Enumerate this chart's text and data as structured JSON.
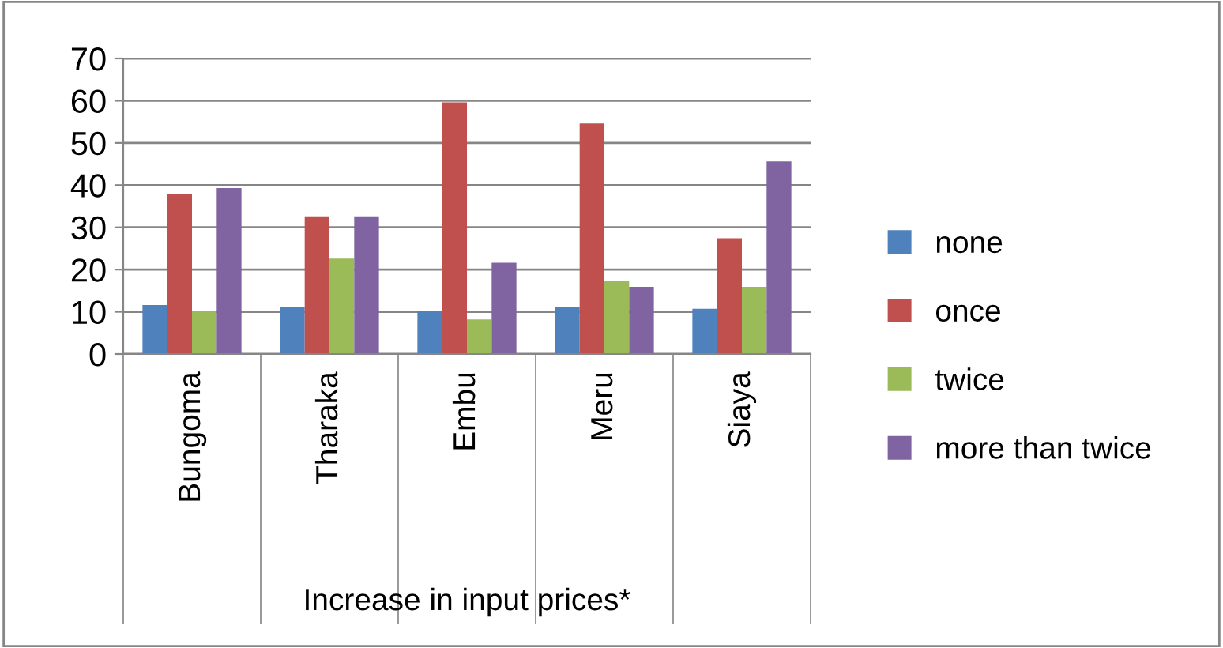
{
  "chart_data": {
    "type": "bar",
    "xlabel": "Increase in input prices*",
    "categories": [
      "Bungoma",
      "Tharaka",
      "Embu",
      "Meru",
      "Siaya"
    ],
    "series": [
      {
        "name": "none",
        "color": "#4f81bd",
        "values": [
          11.6,
          11.1,
          10.1,
          11.1,
          10.7
        ]
      },
      {
        "name": "once",
        "color": "#c0504d",
        "values": [
          37.9,
          32.6,
          59.6,
          54.6,
          27.4
        ]
      },
      {
        "name": "twice",
        "color": "#9bbb59",
        "values": [
          10.1,
          22.6,
          8.2,
          17.3,
          15.9
        ]
      },
      {
        "name": "more than twice",
        "color": "#8064a2",
        "values": [
          39.3,
          32.6,
          21.6,
          15.9,
          45.6
        ]
      }
    ],
    "ylim": [
      0,
      70
    ],
    "yticks": [
      0,
      10,
      20,
      30,
      40,
      50,
      60,
      70
    ],
    "grid": "y",
    "legend": "right"
  }
}
